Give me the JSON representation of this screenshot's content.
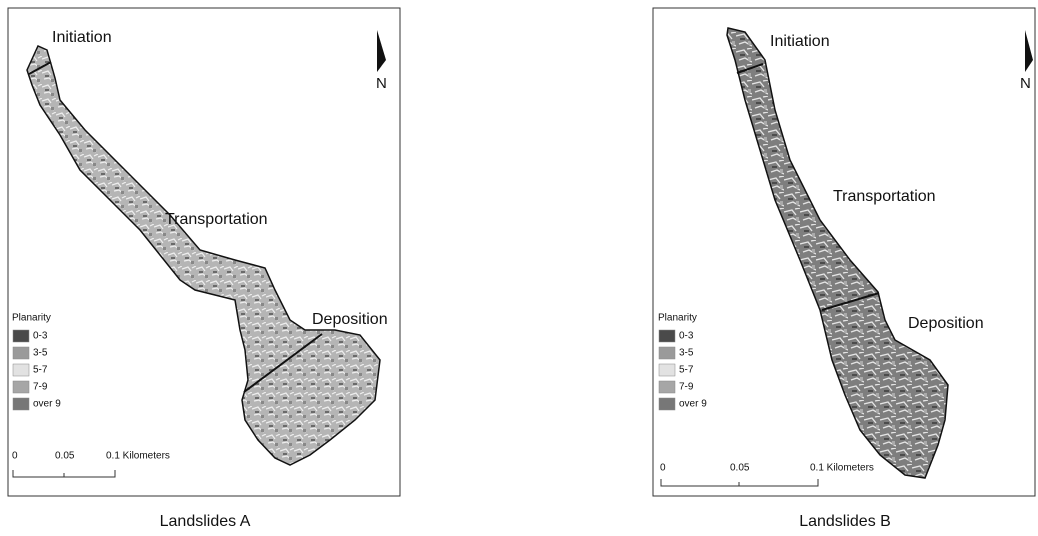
{
  "panels": [
    {
      "caption": "Landslides A",
      "zones": [
        "Initiation",
        "Transportation",
        "Deposition"
      ],
      "north": "N",
      "legend": {
        "title": "Planarity",
        "items": [
          {
            "label": "0-3",
            "color": "#4a4a4a"
          },
          {
            "label": "3-5",
            "color": "#9a9a9a"
          },
          {
            "label": "5-7",
            "color": "#e2e2e2"
          },
          {
            "label": "7-9",
            "color": "#a6a6a6"
          },
          {
            "label": "over 9",
            "color": "#777777"
          }
        ]
      },
      "scale": [
        "0",
        "0.05",
        "0.1 Kilometers"
      ]
    },
    {
      "caption": "Landslides B",
      "zones": [
        "Initiation",
        "Transportation",
        "Deposition"
      ],
      "north": "N",
      "legend": {
        "title": "Planarity",
        "items": [
          {
            "label": "0-3",
            "color": "#4a4a4a"
          },
          {
            "label": "3-5",
            "color": "#9a9a9a"
          },
          {
            "label": "5-7",
            "color": "#e2e2e2"
          },
          {
            "label": "7-9",
            "color": "#a6a6a6"
          },
          {
            "label": "over 9",
            "color": "#777777"
          }
        ]
      },
      "scale": [
        "0",
        "0.05",
        "0.1 Kilometers"
      ]
    }
  ]
}
